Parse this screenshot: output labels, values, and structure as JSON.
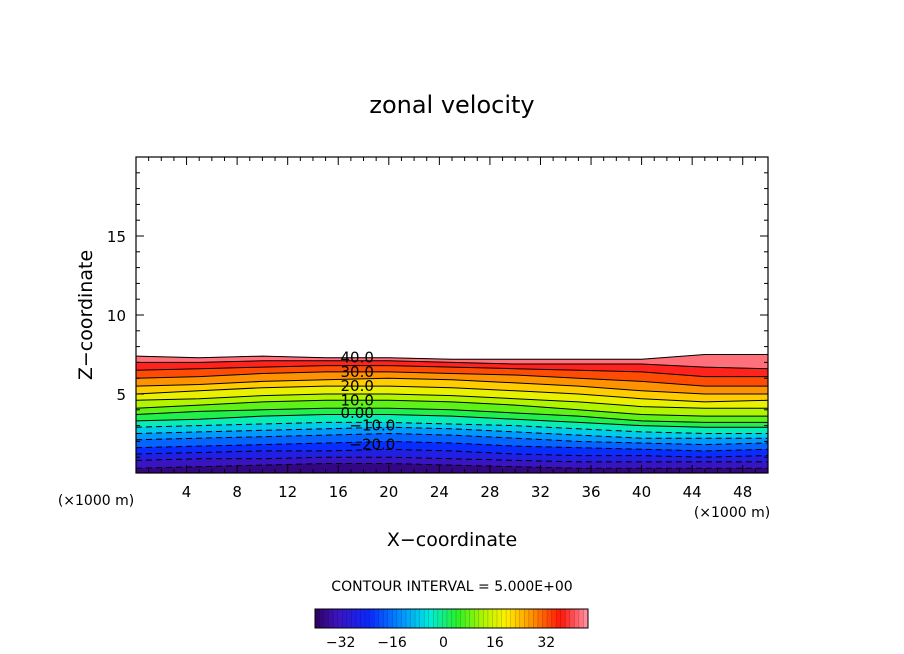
{
  "chart_data": {
    "type": "contour",
    "title": "zonal velocity",
    "xlabel": "X−coordinate",
    "ylabel": "Z−coordinate",
    "x_unit": "(×1000 m)",
    "y_unit": "(×1000 m)",
    "xlim": [
      0,
      50
    ],
    "ylim": [
      0,
      20
    ],
    "x_ticks": [
      4,
      8,
      12,
      16,
      20,
      24,
      28,
      32,
      36,
      40,
      44,
      48
    ],
    "x_tick_labels": [
      "4",
      "8",
      "12",
      "16",
      "20",
      "24",
      "28",
      "32",
      "36",
      "40",
      "44",
      "48"
    ],
    "y_ticks": [
      5,
      10,
      15
    ],
    "y_tick_labels": [
      "5",
      "10",
      "15"
    ],
    "contour_interval_text": "CONTOUR INTERVAL = 5.000E+00",
    "contour_interval": 5,
    "value_range": [
      -40,
      45
    ],
    "contour_labels": [
      {
        "text": "40.0",
        "x": 17.5,
        "z": 7.3
      },
      {
        "text": "30.0",
        "x": 17.5,
        "z": 6.4
      },
      {
        "text": "20.0",
        "x": 17.5,
        "z": 5.5
      },
      {
        "text": "10.0",
        "x": 17.5,
        "z": 4.6
      },
      {
        "text": "0.00",
        "x": 17.5,
        "z": 3.8
      },
      {
        "text": "−10.0",
        "x": 18.7,
        "z": 3.0
      },
      {
        "text": "−20.0",
        "x": 18.7,
        "z": 1.8
      }
    ],
    "contour_sample_x": [
      0,
      5,
      10,
      15,
      20,
      25,
      30,
      35,
      40,
      45,
      50
    ],
    "contour_levels": [
      {
        "value": 45,
        "z": [
          7.4,
          7.3,
          7.4,
          7.3,
          7.3,
          7.2,
          7.2,
          7.2,
          7.2,
          7.5,
          7.5
        ]
      },
      {
        "value": 40,
        "z": [
          7.0,
          7.0,
          7.1,
          7.1,
          7.1,
          7.0,
          6.9,
          6.9,
          6.9,
          6.7,
          6.6
        ]
      },
      {
        "value": 35,
        "z": [
          6.5,
          6.6,
          6.7,
          6.8,
          6.8,
          6.7,
          6.6,
          6.5,
          6.4,
          6.1,
          6.1
        ]
      },
      {
        "value": 30,
        "z": [
          6.0,
          6.1,
          6.3,
          6.4,
          6.4,
          6.3,
          6.2,
          6.0,
          5.8,
          5.5,
          5.5
        ]
      },
      {
        "value": 25,
        "z": [
          5.5,
          5.6,
          5.8,
          5.9,
          6.0,
          5.9,
          5.7,
          5.5,
          5.2,
          5.0,
          5.0
        ]
      },
      {
        "value": 20,
        "z": [
          5.0,
          5.2,
          5.4,
          5.5,
          5.5,
          5.4,
          5.2,
          5.0,
          4.7,
          4.5,
          4.6
        ]
      },
      {
        "value": 15,
        "z": [
          4.6,
          4.7,
          4.9,
          5.0,
          5.0,
          4.9,
          4.7,
          4.5,
          4.2,
          4.1,
          4.1
        ]
      },
      {
        "value": 10,
        "z": [
          4.1,
          4.3,
          4.5,
          4.6,
          4.6,
          4.5,
          4.3,
          4.0,
          3.7,
          3.6,
          3.6
        ]
      },
      {
        "value": 5,
        "z": [
          3.7,
          3.9,
          4.0,
          4.1,
          4.1,
          4.0,
          3.8,
          3.6,
          3.3,
          3.2,
          3.2
        ]
      },
      {
        "value": 0,
        "z": [
          3.3,
          3.4,
          3.6,
          3.7,
          3.7,
          3.6,
          3.4,
          3.2,
          3.0,
          2.9,
          2.9
        ]
      },
      {
        "value": -5,
        "z": [
          2.9,
          3.0,
          3.1,
          3.2,
          3.2,
          3.1,
          3.0,
          2.8,
          2.6,
          2.5,
          2.5
        ]
      },
      {
        "value": -10,
        "z": [
          2.5,
          2.6,
          2.7,
          2.8,
          2.9,
          2.8,
          2.6,
          2.4,
          2.2,
          2.2,
          2.2
        ]
      },
      {
        "value": -15,
        "z": [
          2.1,
          2.2,
          2.3,
          2.4,
          2.5,
          2.4,
          2.2,
          2.0,
          1.9,
          1.8,
          1.9
        ]
      },
      {
        "value": -20,
        "z": [
          1.6,
          1.7,
          1.8,
          1.9,
          2.0,
          1.9,
          1.7,
          1.6,
          1.5,
          1.4,
          1.5
        ]
      },
      {
        "value": -25,
        "z": [
          1.2,
          1.3,
          1.4,
          1.4,
          1.5,
          1.4,
          1.2,
          1.1,
          1.1,
          1.0,
          1.1
        ]
      },
      {
        "value": -30,
        "z": [
          0.8,
          0.9,
          0.9,
          1.0,
          1.0,
          0.9,
          0.8,
          0.7,
          0.7,
          0.7,
          0.7
        ]
      },
      {
        "value": -35,
        "z": [
          0.3,
          0.4,
          0.5,
          0.6,
          0.6,
          0.5,
          0.4,
          0.3,
          0.3,
          0.3,
          0.3
        ]
      }
    ],
    "colorbar": {
      "min": -40,
      "max": 45,
      "ticks": [
        -32,
        -16,
        0,
        16,
        32
      ],
      "tick_labels": [
        "−32",
        "−16",
        "0",
        "16",
        "32"
      ]
    }
  }
}
